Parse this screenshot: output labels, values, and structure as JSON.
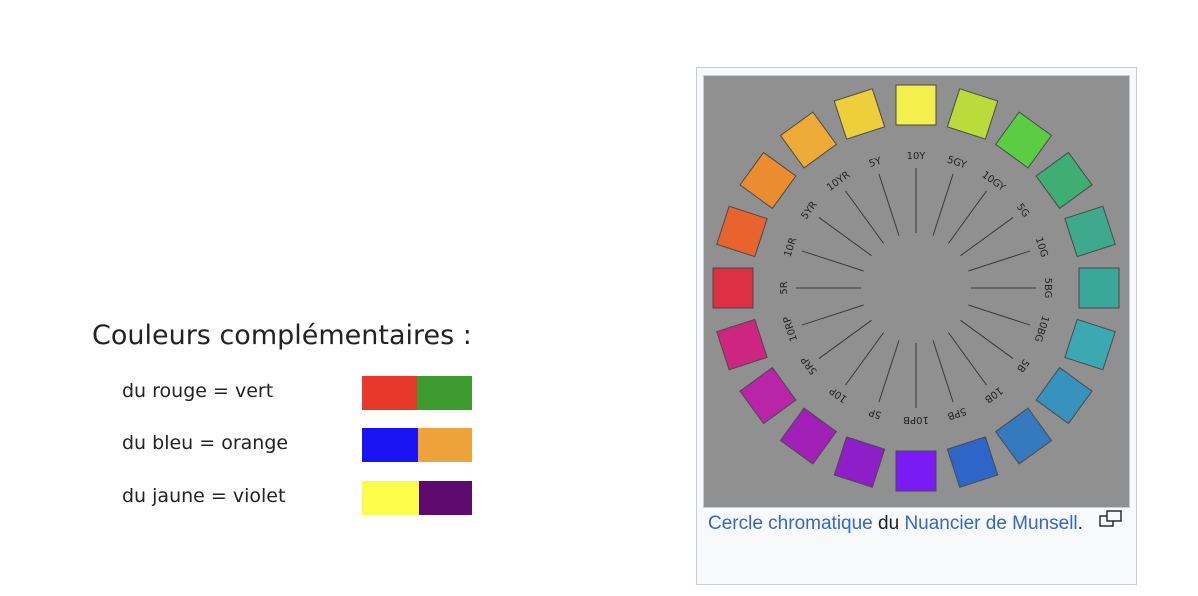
{
  "left_figure": {
    "title": "Couleurs complémentaires :",
    "rows": [
      {
        "label": "du rouge = vert",
        "color_a": "#e8372b",
        "color_b": "#3d9a2e"
      },
      {
        "label": "du bleu = orange",
        "color_a": "#1a13f2",
        "color_b": "#eea33a"
      },
      {
        "label": "du jaune = violet",
        "color_a": "#fefe4a",
        "color_b": "#5e0a6e"
      }
    ]
  },
  "thumbnail": {
    "caption": {
      "link1": "Cercle chromatique",
      "text1": " du ",
      "link2": "Nuancier de Munsell",
      "text2": "."
    },
    "wheel": {
      "background": "#909090",
      "labels": [
        "10Y",
        "5GY",
        "10GY",
        "5G",
        "10G",
        "5BG",
        "10BG",
        "5B",
        "10B",
        "5PB",
        "10PB",
        "5P",
        "10P",
        "5RP",
        "10RP",
        "5R",
        "10R",
        "5YR",
        "10YR",
        "5Y"
      ],
      "swatches": [
        "#f4ef4c",
        "#bbdb3c",
        "#5bcc43",
        "#3fae72",
        "#3ea98c",
        "#3aa79a",
        "#3ca8b2",
        "#3793bd",
        "#3579bf",
        "#3065c8",
        "#7a1af5",
        "#8e1ec8",
        "#a020b8",
        "#ba24a8",
        "#cd2680",
        "#dd3045",
        "#e8632e",
        "#ec8c30",
        "#eeaa36",
        "#eccf3a"
      ]
    }
  }
}
